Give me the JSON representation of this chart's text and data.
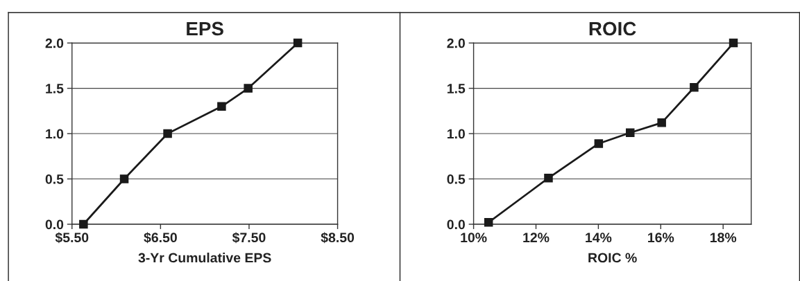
{
  "chart_data": [
    {
      "type": "line",
      "title": "EPS",
      "xlabel": "3-Yr Cumulative EPS",
      "x": [
        5.63,
        6.09,
        6.58,
        7.19,
        7.49,
        8.05
      ],
      "series": [
        {
          "color": "#1a1a1a",
          "values": [
            0.0,
            0.5,
            1.0,
            1.3,
            1.5,
            2.0
          ]
        }
      ],
      "xlim": [
        5.5,
        8.5
      ],
      "xticks": [
        {
          "value": 5.5,
          "label": "$5.50"
        },
        {
          "value": 6.5,
          "label": "$6.50"
        },
        {
          "value": 7.5,
          "label": "$7.50"
        },
        {
          "value": 8.5,
          "label": "$8.50"
        }
      ],
      "ylim": [
        0,
        2
      ],
      "yticks": [
        {
          "value": 0,
          "label": "0.0"
        },
        {
          "value": 0.5,
          "label": "0.5"
        },
        {
          "value": 1,
          "label": "1.0"
        },
        {
          "value": 1.5,
          "label": "1.5"
        },
        {
          "value": 2,
          "label": "2.0"
        }
      ],
      "grid": "y",
      "marker": "square",
      "line_style": "solid"
    },
    {
      "type": "line",
      "title": "ROIC",
      "xlabel": "ROIC %",
      "x": [
        10.48,
        12.4,
        14.01,
        15.02,
        16.03,
        17.07,
        18.33
      ],
      "series": [
        {
          "color": "#1a1a1a",
          "values": [
            0.02,
            0.51,
            0.89,
            1.01,
            1.12,
            1.51,
            2.0
          ]
        }
      ],
      "xlim": [
        10,
        18.9
      ],
      "xticks": [
        {
          "value": 10,
          "label": "10%"
        },
        {
          "value": 12,
          "label": "12%"
        },
        {
          "value": 14,
          "label": "14%"
        },
        {
          "value": 16,
          "label": "16%"
        },
        {
          "value": 18,
          "label": "18%"
        }
      ],
      "ylim": [
        0,
        2
      ],
      "yticks": [
        {
          "value": 0,
          "label": "0.0"
        },
        {
          "value": 0.5,
          "label": "0.5"
        },
        {
          "value": 1,
          "label": "1.0"
        },
        {
          "value": 1.5,
          "label": "1.5"
        },
        {
          "value": 2,
          "label": "2.0"
        }
      ],
      "grid": "y",
      "marker": "square",
      "line_style": "solid"
    }
  ]
}
